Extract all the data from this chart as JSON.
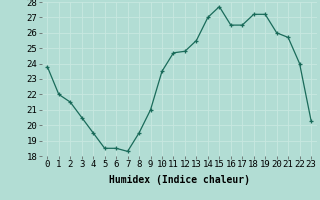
{
  "x": [
    0,
    1,
    2,
    3,
    4,
    5,
    6,
    7,
    8,
    9,
    10,
    11,
    12,
    13,
    14,
    15,
    16,
    17,
    18,
    19,
    20,
    21,
    22,
    23
  ],
  "y": [
    23.8,
    22.0,
    21.5,
    20.5,
    19.5,
    18.5,
    18.5,
    18.3,
    19.5,
    21.0,
    23.5,
    24.7,
    24.8,
    25.5,
    27.0,
    27.7,
    26.5,
    26.5,
    27.2,
    27.2,
    26.0,
    25.7,
    24.0,
    20.3
  ],
  "line_color": "#1a6b5a",
  "marker_color": "#1a6b5a",
  "bg_color": "#b2ddd4",
  "grid_color": "#c8e8e0",
  "xlabel": "Humidex (Indice chaleur)",
  "ylim": [
    18,
    28
  ],
  "xlim_min": -0.5,
  "xlim_max": 23.5,
  "yticks": [
    18,
    19,
    20,
    21,
    22,
    23,
    24,
    25,
    26,
    27,
    28
  ],
  "xticks": [
    0,
    1,
    2,
    3,
    4,
    5,
    6,
    7,
    8,
    9,
    10,
    11,
    12,
    13,
    14,
    15,
    16,
    17,
    18,
    19,
    20,
    21,
    22,
    23
  ],
  "xlabel_fontsize": 7,
  "tick_fontsize": 6.5
}
